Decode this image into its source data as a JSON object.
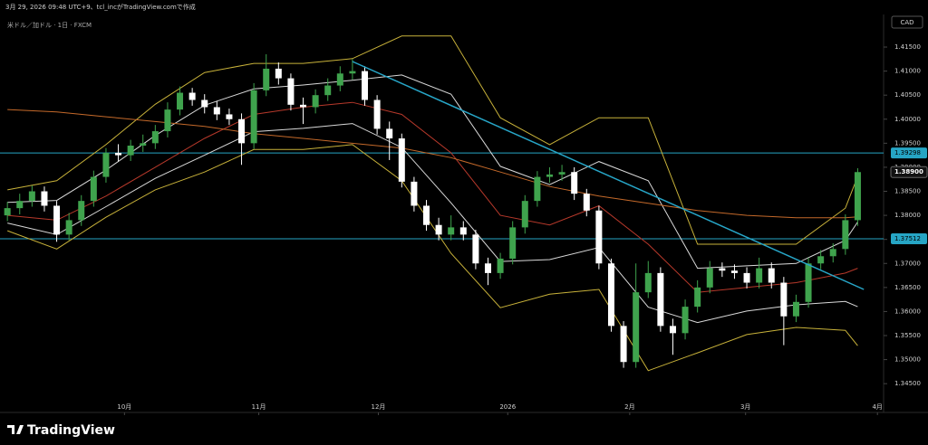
{
  "header": {
    "caption": "3月 29, 2026 09:48 UTC+9、tcl_incがTradingView.comで作成",
    "symbol": "米ドル／加ドル · 1日 · FXCM",
    "currency": "CAD",
    "brand": "TradingView"
  },
  "chart_data": {
    "type": "candlestick",
    "xlim": [
      -0.6,
      71.1
    ],
    "xticks": [
      {
        "value": 9.5,
        "label": "10月"
      },
      {
        "value": 20.4,
        "label": "11月"
      },
      {
        "value": 30.1,
        "label": "12月"
      },
      {
        "value": 40.6,
        "label": "2026"
      },
      {
        "value": 50.5,
        "label": "2月"
      },
      {
        "value": 59.9,
        "label": "3月"
      },
      {
        "value": 70.6,
        "label": "4月"
      }
    ],
    "ylim": [
      1.3392,
      1.4214
    ],
    "yticks": [
      {
        "value": 1.415,
        "label": "1.41500"
      },
      {
        "value": 1.41,
        "label": "1.41000"
      },
      {
        "value": 1.405,
        "label": "1.40500"
      },
      {
        "value": 1.4,
        "label": "1.40000"
      },
      {
        "value": 1.395,
        "label": "1.39500"
      },
      {
        "value": 1.39,
        "label": "1.39000"
      },
      {
        "value": 1.385,
        "label": "1.38500"
      },
      {
        "value": 1.38,
        "label": "1.38000"
      },
      {
        "value": 1.375,
        "label": "1.37500"
      },
      {
        "value": 1.37,
        "label": "1.37000"
      },
      {
        "value": 1.365,
        "label": "1.36500"
      },
      {
        "value": 1.36,
        "label": "1.36000"
      },
      {
        "value": 1.355,
        "label": "1.35500"
      },
      {
        "value": 1.35,
        "label": "1.35000"
      },
      {
        "value": 1.345,
        "label": "1.34500"
      }
    ],
    "up_color": "#3fa34d",
    "down_color": "#ffffff",
    "open": [
      1.38,
      1.3815,
      1.383,
      1.385,
      1.382,
      1.376,
      1.379,
      1.383,
      1.388,
      1.393,
      1.3925,
      1.3945,
      1.395,
      1.3975,
      1.402,
      1.4055,
      1.404,
      1.4025,
      1.401,
      1.4,
      1.395,
      1.406,
      1.4105,
      1.4085,
      1.403,
      1.4025,
      1.405,
      1.407,
      1.4095,
      1.41,
      1.404,
      1.398,
      1.396,
      1.387,
      1.382,
      1.378,
      1.376,
      1.3775,
      1.376,
      1.37,
      1.368,
      1.371,
      1.3775,
      1.383,
      1.388,
      1.3885,
      1.389,
      1.3845,
      1.381,
      1.37,
      1.357,
      1.3495,
      1.364,
      1.368,
      1.357,
      1.3555,
      1.361,
      1.365,
      1.369,
      1.3685,
      1.368,
      1.366,
      1.369,
      1.366,
      1.359,
      1.362,
      1.37,
      1.3715,
      1.373,
      1.379
    ],
    "high": [
      1.3828,
      1.3845,
      1.3862,
      1.386,
      1.383,
      1.3805,
      1.3842,
      1.3893,
      1.394,
      1.3948,
      1.3957,
      1.3968,
      1.3988,
      1.4035,
      1.4068,
      1.4065,
      1.4052,
      1.4038,
      1.4022,
      1.4012,
      1.4075,
      1.4135,
      1.4118,
      1.4095,
      1.4045,
      1.4062,
      1.4085,
      1.411,
      1.4125,
      1.411,
      1.405,
      1.3995,
      1.397,
      1.388,
      1.3832,
      1.3795,
      1.38,
      1.3788,
      1.377,
      1.3712,
      1.3722,
      1.3788,
      1.3842,
      1.3892,
      1.39,
      1.3905,
      1.39,
      1.3855,
      1.382,
      1.371,
      1.358,
      1.37,
      1.3705,
      1.3692,
      1.3585,
      1.3625,
      1.3665,
      1.3705,
      1.3702,
      1.3698,
      1.3692,
      1.3712,
      1.3702,
      1.3672,
      1.3635,
      1.3712,
      1.3728,
      1.3742,
      1.3802,
      1.3898
    ],
    "low": [
      1.3788,
      1.3802,
      1.3818,
      1.3808,
      1.3745,
      1.3748,
      1.3778,
      1.3818,
      1.3868,
      1.3912,
      1.3913,
      1.3932,
      1.3938,
      1.3962,
      1.4008,
      1.4028,
      1.4012,
      1.3998,
      1.3988,
      1.3905,
      1.3938,
      1.4048,
      1.4072,
      1.4018,
      1.399,
      1.4012,
      1.4038,
      1.4058,
      1.4082,
      1.4028,
      1.3968,
      1.3915,
      1.3858,
      1.3808,
      1.3768,
      1.3748,
      1.3748,
      1.3748,
      1.3688,
      1.3655,
      1.3668,
      1.3698,
      1.3762,
      1.3818,
      1.3868,
      1.3872,
      1.3832,
      1.3798,
      1.3688,
      1.3558,
      1.3483,
      1.3483,
      1.3628,
      1.3558,
      1.351,
      1.3542,
      1.3598,
      1.3638,
      1.3672,
      1.3668,
      1.3648,
      1.3648,
      1.3648,
      1.353,
      1.3578,
      1.3608,
      1.3688,
      1.3702,
      1.3718,
      1.3778
    ],
    "close": [
      1.3815,
      1.383,
      1.385,
      1.382,
      1.376,
      1.379,
      1.383,
      1.388,
      1.393,
      1.3925,
      1.3945,
      1.395,
      1.3975,
      1.402,
      1.4055,
      1.404,
      1.4025,
      1.401,
      1.4,
      1.395,
      1.406,
      1.4105,
      1.4085,
      1.403,
      1.4025,
      1.405,
      1.407,
      1.4095,
      1.41,
      1.404,
      1.398,
      1.396,
      1.387,
      1.382,
      1.378,
      1.376,
      1.3775,
      1.376,
      1.37,
      1.368,
      1.371,
      1.3775,
      1.383,
      1.388,
      1.3885,
      1.389,
      1.3845,
      1.381,
      1.37,
      1.357,
      1.3495,
      1.364,
      1.368,
      1.357,
      1.3555,
      1.361,
      1.365,
      1.369,
      1.3685,
      1.368,
      1.366,
      1.369,
      1.366,
      1.359,
      1.362,
      1.37,
      1.3715,
      1.373,
      1.379,
      1.389
    ],
    "overlay_x": [
      0,
      4,
      8,
      12,
      16,
      20,
      24,
      28,
      32,
      36,
      40,
      44,
      48,
      52,
      56,
      60,
      64,
      68,
      69
    ],
    "overlays": [
      {
        "color": "#c8b23a",
        "values": [
          1.3853,
          1.3872,
          1.3947,
          1.4031,
          1.4097,
          1.4116,
          1.4116,
          1.4126,
          1.4173,
          1.4173,
          1.4003,
          1.3947,
          1.4003,
          1.4003,
          1.374,
          1.374,
          1.374,
          1.3815,
          1.3881
        ]
      },
      {
        "color": "#c8b23a",
        "values": [
          1.3768,
          1.373,
          1.3796,
          1.3853,
          1.389,
          1.3937,
          1.3937,
          1.3947,
          1.3872,
          1.3721,
          1.3608,
          1.3636,
          1.3646,
          1.3477,
          1.3514,
          1.3552,
          1.3567,
          1.3561,
          1.3529
        ]
      },
      {
        "color": "#d9d9d9",
        "values": [
          1.3827,
          1.3831,
          1.3894,
          1.3966,
          1.4029,
          1.4063,
          1.4071,
          1.4081,
          1.4092,
          1.4052,
          1.3902,
          1.3864,
          1.3912,
          1.3872,
          1.369,
          1.3695,
          1.37,
          1.3748,
          1.3786
        ]
      },
      {
        "color": "#d9d9d9",
        "values": [
          1.3784,
          1.376,
          1.3818,
          1.3877,
          1.3925,
          1.3974,
          1.3981,
          1.3991,
          1.3941,
          1.3826,
          1.3704,
          1.3708,
          1.3733,
          1.3609,
          1.3577,
          1.3601,
          1.3614,
          1.3621,
          1.361
        ]
      },
      {
        "color": "#b8392b",
        "values": [
          1.38,
          1.379,
          1.384,
          1.39,
          1.396,
          1.401,
          1.4025,
          1.4035,
          1.401,
          1.393,
          1.38,
          1.378,
          1.382,
          1.374,
          1.364,
          1.365,
          1.366,
          1.368,
          1.369
        ]
      },
      {
        "color": "#c4692a",
        "values": [
          1.402,
          1.4015,
          1.4005,
          1.3995,
          1.3985,
          1.397,
          1.396,
          1.395,
          1.394,
          1.392,
          1.389,
          1.386,
          1.384,
          1.3825,
          1.381,
          1.38,
          1.3795,
          1.3795,
          1.3797
        ]
      }
    ],
    "trendline": {
      "color": "#27a6c8",
      "x": [
        28,
        69.5
      ],
      "values": [
        1.412,
        1.3646
      ]
    },
    "hlines": [
      {
        "value": 1.39298,
        "color": "#26a5c4"
      },
      {
        "value": 1.37512,
        "color": "#26a5c4"
      }
    ],
    "last_price": {
      "value": 1.389,
      "label": "1.38900"
    }
  }
}
